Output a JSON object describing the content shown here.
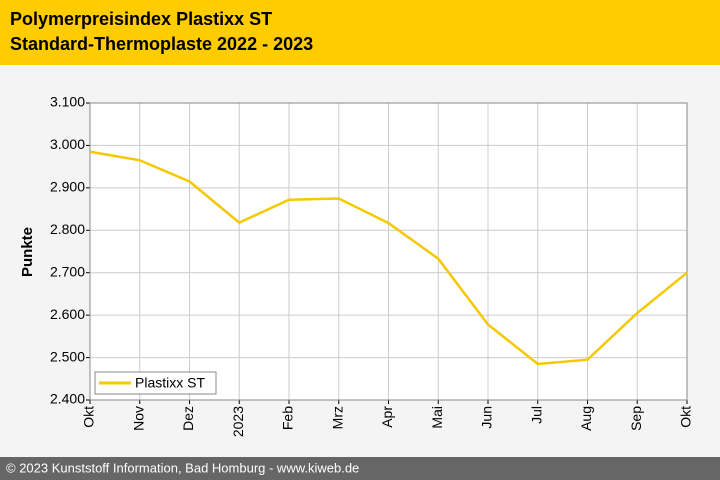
{
  "chart_data": {
    "type": "line",
    "title": "Polymerpreisindex Plastixx ST",
    "subtitle": "Standard-Thermoplaste 2022 - 2023",
    "y_label": "Punkte",
    "categories": [
      "Okt",
      "Nov",
      "Dez",
      "2023",
      "Feb",
      "Mrz",
      "Apr",
      "Mai",
      "Jun",
      "Jul",
      "Aug",
      "Sep",
      "Okt"
    ],
    "series": [
      {
        "name": "Plastixx ST",
        "color": "#f5c800",
        "values": [
          2985,
          2965,
          2915,
          2818,
          2872,
          2875,
          2817,
          2733,
          2578,
          2485,
          2495,
          2605,
          2700
        ]
      }
    ],
    "ylim": [
      2400,
      3100
    ],
    "yticks": [
      {
        "value": 2400,
        "label": "2.400"
      },
      {
        "value": 2500,
        "label": "2.500"
      },
      {
        "value": 2600,
        "label": "2.600"
      },
      {
        "value": 2700,
        "label": "2.700"
      },
      {
        "value": 2800,
        "label": "2.800"
      },
      {
        "value": 2900,
        "label": "2.900"
      },
      {
        "value": 3000,
        "label": "3.000"
      },
      {
        "value": 3100,
        "label": "3.100"
      }
    ],
    "grid": true,
    "legend": "lower-left"
  },
  "footer": "© 2023 Kunststoff Information, Bad Homburg - www.kiweb.de"
}
